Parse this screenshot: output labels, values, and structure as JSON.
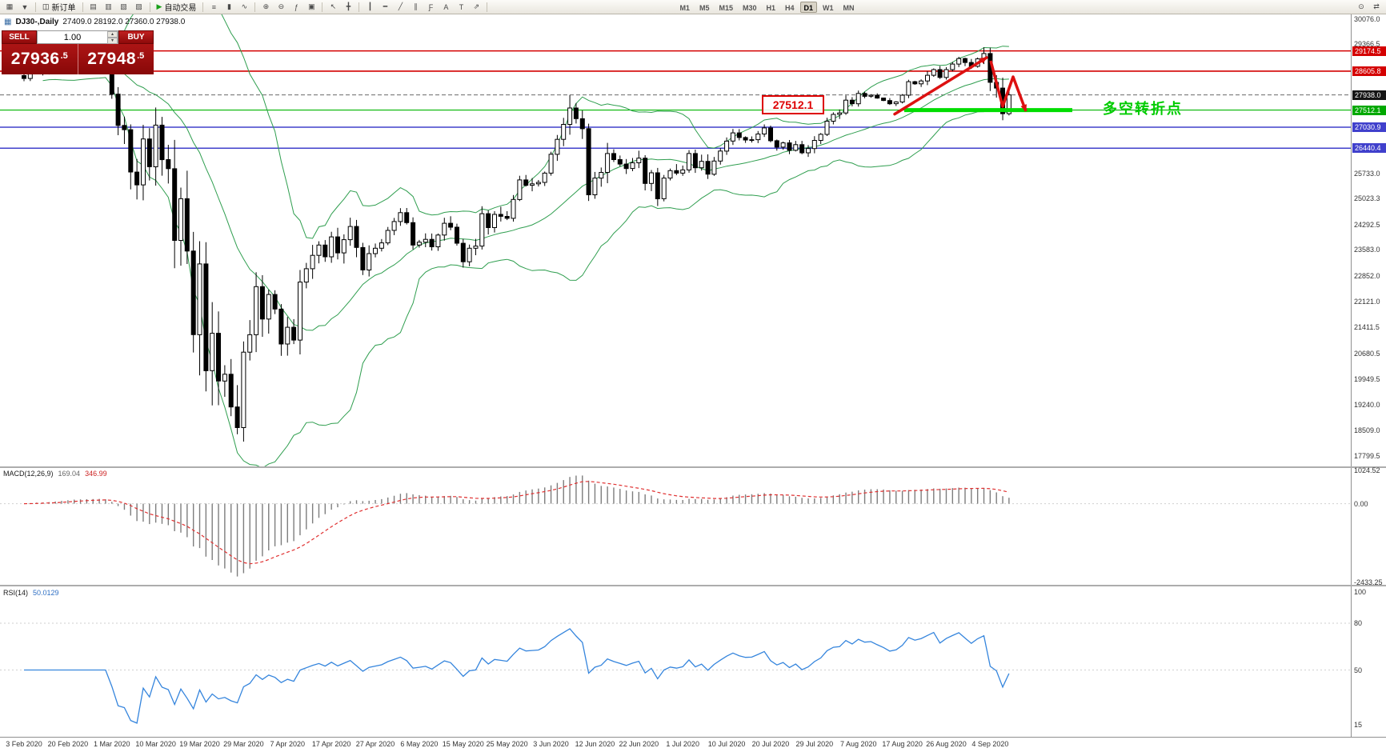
{
  "toolbar": {
    "groups": [
      [
        {
          "n": "new-chart-button",
          "g": "▦"
        },
        {
          "n": "chart-profiles-button",
          "g": "▼"
        }
      ],
      [
        {
          "n": "new-order-button",
          "g": "◫",
          "label": "新订单"
        }
      ],
      [
        {
          "n": "market-watch-button",
          "g": "▤"
        },
        {
          "n": "data-window-button",
          "g": "▥"
        },
        {
          "n": "navigator-button",
          "g": "▧"
        },
        {
          "n": "terminal-button",
          "g": "▨"
        }
      ],
      [
        {
          "n": "auto-trading-button",
          "g": "▶",
          "label": "自动交易",
          "c": "#18a018"
        }
      ],
      [
        {
          "n": "bar-chart-button",
          "g": "≡"
        },
        {
          "n": "candlestick-chart-button",
          "g": "▮"
        },
        {
          "n": "line-chart-button",
          "g": "∿"
        }
      ],
      [
        {
          "n": "zoom-in-button",
          "g": "⊕"
        },
        {
          "n": "zoom-out-button",
          "g": "⊖"
        },
        {
          "n": "indicators-button",
          "g": "ƒ"
        },
        {
          "n": "templates-button",
          "g": "▣"
        }
      ],
      [
        {
          "n": "cursor-button",
          "g": "↖"
        },
        {
          "n": "crosshair-button",
          "g": "╋"
        }
      ],
      [
        {
          "n": "vertical-line-button",
          "g": "┃"
        },
        {
          "n": "horizontal-line-button",
          "g": "━"
        },
        {
          "n": "trendline-button",
          "g": "╱"
        },
        {
          "n": "channel-button",
          "g": "∥"
        },
        {
          "n": "fibonacci-button",
          "g": "Ƒ"
        },
        {
          "n": "text-button",
          "g": "A"
        },
        {
          "n": "label-button",
          "g": "T"
        },
        {
          "n": "arrow-tools-button",
          "g": "⇗"
        }
      ]
    ],
    "timeframes": [
      "M1",
      "M5",
      "M15",
      "M30",
      "H1",
      "H4",
      "D1",
      "W1",
      "MN"
    ],
    "active_timeframe": "D1",
    "right_icons": [
      {
        "n": "search-button",
        "g": "⊙"
      },
      {
        "n": "scroll-chart-button",
        "g": "⇄"
      }
    ]
  },
  "chart": {
    "symbol_period": "DJ30-,Daily",
    "ohlc_text": "27409.0 28192.0 27360.0 27938.0",
    "trade_panel": {
      "sell_label": "SELL",
      "buy_label": "BUY",
      "volume": "1.00",
      "sell_price_base": "27936",
      "sell_price_sup": ".5",
      "buy_price_base": "27948",
      "buy_price_sup": ".5"
    },
    "levels": [
      {
        "price": 29174.5,
        "label": "29174.5",
        "badge": "#d40000",
        "line": "#d40000",
        "width": 1.6,
        "style": "solid"
      },
      {
        "price": 28605.8,
        "label": "28605.8",
        "badge": "#d40000",
        "line": "#d40000",
        "width": 1.6,
        "style": "solid"
      },
      {
        "price": 27938.0,
        "label": "27938.0",
        "badge": "#151515",
        "line": "#6a6a6a",
        "width": 1,
        "style": "dashed"
      },
      {
        "price": 27512.1,
        "label": "27512.1",
        "badge": "#00a800",
        "line": "#00b400",
        "width": 1.2,
        "style": "solid"
      },
      {
        "price": 27030.9,
        "label": "27030.9",
        "badge": "#4040cc",
        "line": "#4040cc",
        "width": 1.4,
        "style": "solid"
      },
      {
        "price": 26440.4,
        "label": "26440.4",
        "badge": "#4040cc",
        "line": "#4040cc",
        "width": 1.4,
        "style": "solid"
      }
    ],
    "annotations": {
      "level_label": "27512.1",
      "pivot_text": "多空转折点"
    }
  },
  "macd": {
    "name": "MACD(12,26,9)",
    "value1": "169.04",
    "value2": "346.99",
    "y_ticks": [
      "1024.52",
      "0.00",
      "-2433.25"
    ]
  },
  "rsi": {
    "name": "RSI(14)",
    "value": "50.0129",
    "y_ticks": [
      "100",
      "80",
      "50",
      "15"
    ]
  },
  "colors": {
    "band_green": "#2f9e4f",
    "pivot_green": "#00dd00",
    "annotation_red": "#dd1111",
    "macd_hist": "#7d7d7d",
    "macd_signal": "#e03030",
    "rsi_line": "#3585dd",
    "candle_up": "#ffffff",
    "candle_down": "#000000"
  },
  "chart_data": {
    "type": "candlestick",
    "symbol": "DJ30-",
    "timeframe": "Daily",
    "count": 158,
    "last_candle": {
      "open": 27409.0,
      "high": 28192.0,
      "low": 27360.0,
      "close": 27938.0
    },
    "horizontal_levels": [
      29174.5,
      28605.8,
      27938.0,
      27512.1,
      27030.9,
      26440.4
    ],
    "overlays": {
      "bollinger": {
        "period": 20,
        "deviation": 2
      }
    },
    "subcharts": [
      {
        "type": "macd_histogram",
        "label": "MACD(12,26,9)",
        "current": [
          169.04,
          346.99
        ]
      },
      {
        "type": "line",
        "label": "RSI(14)",
        "current": 50.0129
      }
    ],
    "y_ticks": [
      "30076.0",
      "29366.5",
      "25733.0",
      "25023.3",
      "24292.5",
      "23583.0",
      "22852.0",
      "22121.0",
      "21411.5",
      "20680.5",
      "19949.5",
      "19240.0",
      "18509.0",
      "17799.5"
    ],
    "x_labels": [
      "3 Feb 2020",
      "20 Feb 2020",
      "1 Mar 2020",
      "10 Mar 2020",
      "19 Mar 2020",
      "29 Mar 2020",
      "7 Apr 2020",
      "17 Apr 2020",
      "27 Apr 2020",
      "6 May 2020",
      "15 May 2020",
      "25 May 2020",
      "3 Jun 2020",
      "12 Jun 2020",
      "22 Jun 2020",
      "1 Jul 2020",
      "10 Jul 2020",
      "20 Jul 2020",
      "29 Jul 2020",
      "7 Aug 2020",
      "17 Aug 2020",
      "26 Aug 2020",
      "4 Sep 2020"
    ],
    "close_anchors": [
      [
        0,
        28400
      ],
      [
        2,
        28700
      ],
      [
        3,
        28560
      ],
      [
        5,
        28760
      ],
      [
        6,
        28860
      ],
      [
        8,
        28990
      ],
      [
        9,
        28900
      ],
      [
        11,
        28950
      ],
      [
        12,
        28990
      ],
      [
        13,
        28800
      ],
      [
        14,
        27960
      ],
      [
        15,
        27080
      ],
      [
        16,
        26960
      ],
      [
        17,
        25770
      ],
      [
        18,
        25410
      ],
      [
        19,
        26700
      ],
      [
        20,
        25920
      ],
      [
        21,
        27090
      ],
      [
        22,
        26120
      ],
      [
        23,
        25865
      ],
      [
        24,
        23850
      ],
      [
        25,
        25020
      ],
      [
        26,
        23550
      ],
      [
        27,
        21200
      ],
      [
        28,
        23190
      ],
      [
        29,
        20190
      ],
      [
        30,
        21240
      ],
      [
        31,
        19900
      ],
      [
        32,
        20090
      ],
      [
        33,
        19170
      ],
      [
        34,
        18590
      ],
      [
        35,
        20710
      ],
      [
        36,
        21200
      ],
      [
        37,
        22550
      ],
      [
        38,
        21640
      ],
      [
        39,
        22330
      ],
      [
        40,
        21920
      ],
      [
        41,
        20940
      ],
      [
        42,
        21410
      ],
      [
        43,
        21050
      ],
      [
        44,
        22680
      ],
      [
        46,
        23430
      ],
      [
        47,
        23720
      ],
      [
        48,
        23390
      ],
      [
        49,
        23950
      ],
      [
        50,
        23500
      ],
      [
        52,
        24240
      ],
      [
        53,
        23650
      ],
      [
        54,
        23020
      ],
      [
        55,
        23480
      ],
      [
        57,
        23780
      ],
      [
        58,
        24130
      ],
      [
        60,
        24630
      ],
      [
        61,
        24350
      ],
      [
        62,
        23720
      ],
      [
        64,
        23880
      ],
      [
        65,
        23670
      ],
      [
        67,
        24330
      ],
      [
        68,
        24220
      ],
      [
        69,
        23770
      ],
      [
        70,
        23250
      ],
      [
        71,
        23630
      ],
      [
        72,
        23690
      ],
      [
        73,
        24600
      ],
      [
        74,
        24210
      ],
      [
        75,
        24580
      ],
      [
        77,
        24470
      ],
      [
        78,
        25000
      ],
      [
        79,
        25550
      ],
      [
        80,
        25400
      ],
      [
        82,
        25480
      ],
      [
        83,
        25740
      ],
      [
        84,
        26270
      ],
      [
        86,
        27110
      ],
      [
        87,
        27570
      ],
      [
        88,
        27270
      ],
      [
        89,
        26990
      ],
      [
        90,
        25130
      ],
      [
        91,
        25600
      ],
      [
        92,
        25760
      ],
      [
        93,
        26290
      ],
      [
        94,
        26120
      ],
      [
        96,
        25870
      ],
      [
        97,
        26030
      ],
      [
        98,
        26160
      ],
      [
        99,
        25450
      ],
      [
        100,
        25750
      ],
      [
        101,
        25020
      ],
      [
        102,
        25600
      ],
      [
        103,
        25810
      ],
      [
        104,
        25740
      ],
      [
        105,
        25830
      ],
      [
        106,
        26290
      ],
      [
        107,
        25890
      ],
      [
        108,
        26070
      ],
      [
        109,
        25710
      ],
      [
        110,
        26080
      ],
      [
        112,
        26640
      ],
      [
        113,
        26870
      ],
      [
        114,
        26740
      ],
      [
        115,
        26670
      ],
      [
        116,
        26680
      ],
      [
        117,
        26840
      ],
      [
        118,
        27010
      ],
      [
        119,
        26650
      ],
      [
        120,
        26470
      ],
      [
        121,
        26590
      ],
      [
        122,
        26380
      ],
      [
        123,
        26540
      ],
      [
        124,
        26310
      ],
      [
        125,
        26430
      ],
      [
        126,
        26660
      ],
      [
        127,
        26830
      ],
      [
        128,
        27200
      ],
      [
        129,
        27390
      ],
      [
        130,
        27430
      ],
      [
        131,
        27790
      ],
      [
        132,
        27690
      ],
      [
        133,
        27980
      ],
      [
        134,
        27900
      ],
      [
        135,
        27930
      ],
      [
        136,
        27850
      ],
      [
        137,
        27780
      ],
      [
        138,
        27690
      ],
      [
        139,
        27740
      ],
      [
        140,
        27930
      ],
      [
        141,
        28310
      ],
      [
        142,
        28250
      ],
      [
        143,
        28330
      ],
      [
        144,
        28490
      ],
      [
        145,
        28650
      ],
      [
        146,
        28430
      ],
      [
        147,
        28650
      ],
      [
        149,
        28960
      ],
      [
        151,
        28740
      ],
      [
        152,
        28950
      ],
      [
        153,
        29100
      ],
      [
        154,
        28290
      ],
      [
        155,
        28130
      ],
      [
        156,
        27410
      ],
      [
        157,
        27938
      ]
    ]
  }
}
